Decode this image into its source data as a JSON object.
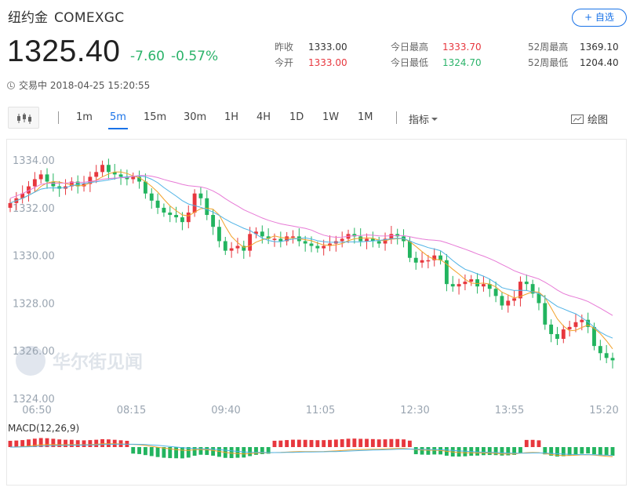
{
  "header": {
    "name": "纽约金",
    "symbol": "COMEXGC",
    "watch_label": "+ 自选"
  },
  "quote": {
    "price": "1325.40",
    "change": "-7.60",
    "change_pct": "-0.57%",
    "status_text": "交易中 2018-04-25 15:20:55"
  },
  "stats": [
    {
      "label": "昨收",
      "value": "1333.00",
      "tone": "neutral"
    },
    {
      "label": "今开",
      "value": "1333.00",
      "tone": "red"
    },
    {
      "label": "今日最高",
      "value": "1333.70",
      "tone": "red"
    },
    {
      "label": "今日最低",
      "value": "1324.70",
      "tone": "green"
    },
    {
      "label": "52周最高",
      "value": "1369.10",
      "tone": "neutral"
    },
    {
      "label": "52周最低",
      "value": "1204.40",
      "tone": "neutral"
    }
  ],
  "toolbar": {
    "intervals": [
      "1m",
      "5m",
      "15m",
      "30m",
      "1H",
      "4H",
      "1D",
      "1W",
      "1M"
    ],
    "active_interval": "5m",
    "indicator_label": "指标",
    "draw_label": "绘图"
  },
  "watermark": "华尔街见闻",
  "colors": {
    "up": "#e7373e",
    "down": "#22b45f",
    "ma_short": "#f2a22b",
    "ma_mid": "#4fb3e6",
    "ma_long": "#e77ad6",
    "accent": "#1a73e8"
  },
  "chart_data": [
    {
      "type": "candlestick",
      "interval": "5m",
      "yticks": [
        "1334.00",
        "1332.00",
        "1330.00",
        "1328.00",
        "1326.00",
        "1324.00"
      ],
      "xticks": [
        "06:50",
        "08:15",
        "09:40",
        "11:05",
        "12:30",
        "13:55",
        "15:20"
      ],
      "ylim": [
        1324.0,
        1334.4
      ],
      "closes": [
        1332.2,
        1332.4,
        1332.6,
        1332.9,
        1333.2,
        1333.4,
        1333.1,
        1332.9,
        1332.8,
        1332.9,
        1333.1,
        1332.9,
        1333.0,
        1333.3,
        1333.5,
        1333.8,
        1333.5,
        1333.4,
        1333.3,
        1333.2,
        1333.3,
        1333.1,
        1332.6,
        1332.3,
        1332.0,
        1331.8,
        1331.7,
        1331.6,
        1331.4,
        1331.8,
        1332.6,
        1332.4,
        1331.7,
        1331.2,
        1330.6,
        1330.2,
        1330.3,
        1330.4,
        1330.2,
        1330.9,
        1331.0,
        1330.8,
        1330.7,
        1330.7,
        1330.6,
        1330.8,
        1330.8,
        1330.6,
        1330.5,
        1330.4,
        1330.3,
        1330.4,
        1330.5,
        1330.6,
        1330.7,
        1330.9,
        1330.8,
        1330.6,
        1330.7,
        1330.6,
        1330.5,
        1330.7,
        1330.9,
        1330.8,
        1330.6,
        1329.9,
        1329.7,
        1329.8,
        1329.8,
        1330.0,
        1329.8,
        1328.8,
        1328.7,
        1328.8,
        1328.9,
        1329.0,
        1328.7,
        1328.8,
        1328.6,
        1328.3,
        1327.9,
        1328.1,
        1328.2,
        1328.9,
        1328.8,
        1328.4,
        1328.0,
        1327.1,
        1326.7,
        1326.5,
        1326.9,
        1327.0,
        1327.2,
        1327.3,
        1327.0,
        1326.2,
        1325.9,
        1325.7,
        1325.6
      ],
      "series": [
        {
          "name": "MA short",
          "style": "orange"
        },
        {
          "name": "MA mid",
          "style": "blue"
        },
        {
          "name": "MA long",
          "style": "pink"
        }
      ]
    },
    {
      "type": "bar",
      "label": "MACD(12,26,9)",
      "note": "MACD histogram with DIF/DEA lines, mostly negative after 09:40"
    }
  ]
}
